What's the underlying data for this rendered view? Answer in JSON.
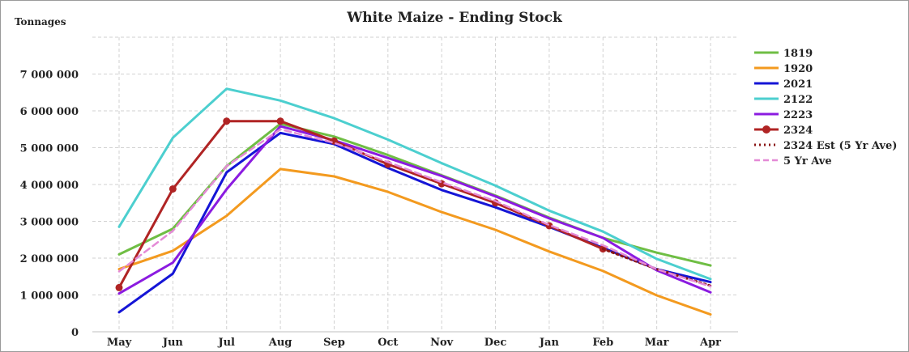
{
  "chart_data": {
    "type": "line",
    "title": "White Maize - Ending Stock",
    "ylabel": "Tonnages",
    "xlabel": "",
    "categories": [
      "May",
      "Jun",
      "Jul",
      "Aug",
      "Sep",
      "Oct",
      "Nov",
      "Dec",
      "Jan",
      "Feb",
      "Mar",
      "Apr"
    ],
    "ylim": [
      0,
      8000000
    ],
    "yticks": [
      0,
      1000000,
      2000000,
      3000000,
      4000000,
      5000000,
      6000000,
      7000000
    ],
    "ytick_labels": [
      "0",
      "1 000 000",
      "2 000 000",
      "3 000 000",
      "4 000 000",
      "5 000 000",
      "6 000 000",
      "7 000 000"
    ],
    "grid": true,
    "legend_position": "right",
    "series": [
      {
        "name": "1819",
        "color": "#6fbe44",
        "style": "solid",
        "marker": false,
        "values": [
          2100000,
          2800000,
          4500000,
          5650000,
          5300000,
          4800000,
          4250000,
          3700000,
          3100000,
          2550000,
          2150000,
          1800000
        ]
      },
      {
        "name": "1920",
        "color": "#f39a1f",
        "style": "solid",
        "marker": false,
        "values": [
          1700000,
          2200000,
          3150000,
          4420000,
          4220000,
          3800000,
          3250000,
          2770000,
          2180000,
          1650000,
          990000,
          470000
        ]
      },
      {
        "name": "2021",
        "color": "#1515d6",
        "style": "solid",
        "marker": false,
        "values": [
          530000,
          1580000,
          4330000,
          5400000,
          5100000,
          4450000,
          3850000,
          3380000,
          2850000,
          2280000,
          1700000,
          1350000
        ]
      },
      {
        "name": "2122",
        "color": "#4ccfcf",
        "style": "solid",
        "marker": false,
        "values": [
          2850000,
          5270000,
          6600000,
          6280000,
          5800000,
          5220000,
          4580000,
          3970000,
          3290000,
          2720000,
          1980000,
          1430000
        ]
      },
      {
        "name": "2223",
        "color": "#8b1be0",
        "style": "solid",
        "marker": false,
        "values": [
          1040000,
          1880000,
          3870000,
          5580000,
          5200000,
          4720000,
          4230000,
          3680000,
          3080000,
          2550000,
          1670000,
          1070000
        ]
      },
      {
        "name": "2324",
        "color": "#b02424",
        "style": "solid",
        "marker": true,
        "values": [
          1200000,
          3880000,
          5720000,
          5720000,
          5180000,
          4550000,
          4020000,
          3500000,
          2880000,
          2250000,
          null,
          null
        ]
      },
      {
        "name": "2324 Est (5 Yr Ave)",
        "color": "#8a1414",
        "style": "dotted",
        "marker": false,
        "values": [
          null,
          null,
          null,
          null,
          null,
          null,
          null,
          null,
          null,
          2250000,
          1700000,
          1250000
        ]
      },
      {
        "name": "5 Yr Ave",
        "color": "#e48ad6",
        "style": "dashed",
        "marker": false,
        "values": [
          1640000,
          2740000,
          4500000,
          5500000,
          5130000,
          4610000,
          4060000,
          3550000,
          2900000,
          2350000,
          1700000,
          1230000
        ]
      }
    ]
  }
}
